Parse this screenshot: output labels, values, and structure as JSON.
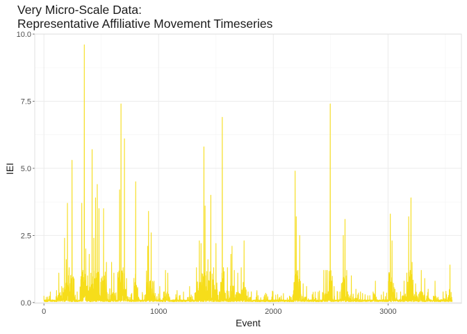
{
  "chart_data": {
    "type": "line",
    "title_lines": [
      "Very Micro-Scale Data:",
      "Representative Affiliative Movement Timeseries"
    ],
    "xlabel": "Event",
    "ylabel": "IEI",
    "xlim": [
      -80,
      3640
    ],
    "ylim": [
      -0.03,
      10.0
    ],
    "x_ticks": [
      0,
      1000,
      2000,
      3000
    ],
    "x_tick_labels": [
      "0",
      "1000",
      "2000",
      "3000"
    ],
    "y_ticks": [
      0.0,
      2.5,
      5.0,
      7.5,
      10.0
    ],
    "y_tick_labels": [
      "0.0",
      "2.5",
      "5.0",
      "7.5",
      "10.0"
    ],
    "grid": true,
    "legend": "none",
    "n_points": 3560,
    "baseline": 0.08,
    "line_color": "#F6DD1A",
    "peaks": [
      [
        0,
        0.25
      ],
      [
        12,
        0.1
      ],
      [
        45,
        0.12
      ],
      [
        110,
        0.45
      ],
      [
        130,
        1.1
      ],
      [
        155,
        0.6
      ],
      [
        180,
        2.4
      ],
      [
        195,
        1.6
      ],
      [
        205,
        3.7
      ],
      [
        220,
        1.3
      ],
      [
        245,
        5.3
      ],
      [
        260,
        0.9
      ],
      [
        290,
        0.4
      ],
      [
        330,
        3.7
      ],
      [
        340,
        1.2
      ],
      [
        352,
        9.6
      ],
      [
        365,
        2.0
      ],
      [
        380,
        1.0
      ],
      [
        395,
        1.8
      ],
      [
        420,
        5.7
      ],
      [
        435,
        2.4
      ],
      [
        450,
        3.9
      ],
      [
        465,
        4.4
      ],
      [
        480,
        3.5
      ],
      [
        500,
        0.9
      ],
      [
        520,
        3.5
      ],
      [
        545,
        1.5
      ],
      [
        590,
        1.5
      ],
      [
        610,
        1.1
      ],
      [
        660,
        4.2
      ],
      [
        672,
        7.4
      ],
      [
        690,
        1.3
      ],
      [
        702,
        6.1
      ],
      [
        720,
        0.9
      ],
      [
        760,
        0.3
      ],
      [
        800,
        4.5
      ],
      [
        812,
        0.5
      ],
      [
        860,
        0.3
      ],
      [
        905,
        2.1
      ],
      [
        912,
        3.4
      ],
      [
        935,
        2.6
      ],
      [
        960,
        0.8
      ],
      [
        1010,
        0.6
      ],
      [
        1060,
        1.2
      ],
      [
        1080,
        1.1
      ],
      [
        1150,
        0.3
      ],
      [
        1270,
        0.6
      ],
      [
        1330,
        1.3
      ],
      [
        1355,
        2.3
      ],
      [
        1370,
        2.2
      ],
      [
        1395,
        5.8
      ],
      [
        1405,
        3.6
      ],
      [
        1430,
        1.6
      ],
      [
        1455,
        4.0
      ],
      [
        1480,
        1.3
      ],
      [
        1500,
        2.2
      ],
      [
        1555,
        6.9
      ],
      [
        1565,
        1.3
      ],
      [
        1600,
        1.3
      ],
      [
        1630,
        1.8
      ],
      [
        1640,
        2.1
      ],
      [
        1660,
        1.2
      ],
      [
        1690,
        1.1
      ],
      [
        1720,
        1.3
      ],
      [
        1735,
        0.5
      ],
      [
        1745,
        2.3
      ],
      [
        1780,
        0.4
      ],
      [
        1850,
        0.2
      ],
      [
        1950,
        0.15
      ],
      [
        2050,
        0.15
      ],
      [
        2190,
        4.9
      ],
      [
        2200,
        3.2
      ],
      [
        2215,
        1.2
      ],
      [
        2230,
        2.5
      ],
      [
        2260,
        0.7
      ],
      [
        2290,
        0.6
      ],
      [
        2350,
        0.2
      ],
      [
        2440,
        1.2
      ],
      [
        2458,
        1.2
      ],
      [
        2470,
        1.2
      ],
      [
        2496,
        7.4
      ],
      [
        2530,
        0.6
      ],
      [
        2580,
        0.4
      ],
      [
        2610,
        2.5
      ],
      [
        2625,
        3.1
      ],
      [
        2640,
        1.2
      ],
      [
        2680,
        1.0
      ],
      [
        2720,
        0.5
      ],
      [
        2760,
        0.4
      ],
      [
        2800,
        0.3
      ],
      [
        2870,
        0.4
      ],
      [
        2890,
        0.8
      ],
      [
        2960,
        0.4
      ],
      [
        3020,
        3.3
      ],
      [
        3035,
        2.3
      ],
      [
        3060,
        0.5
      ],
      [
        3110,
        0.4
      ],
      [
        3140,
        0.8
      ],
      [
        3180,
        3.2
      ],
      [
        3200,
        3.9
      ],
      [
        3210,
        1.5
      ],
      [
        3240,
        0.7
      ],
      [
        3290,
        1.2
      ],
      [
        3320,
        0.9
      ],
      [
        3350,
        0.5
      ],
      [
        3410,
        0.8
      ],
      [
        3480,
        0.4
      ],
      [
        3540,
        1.4
      ],
      [
        3555,
        0.2
      ]
    ]
  }
}
